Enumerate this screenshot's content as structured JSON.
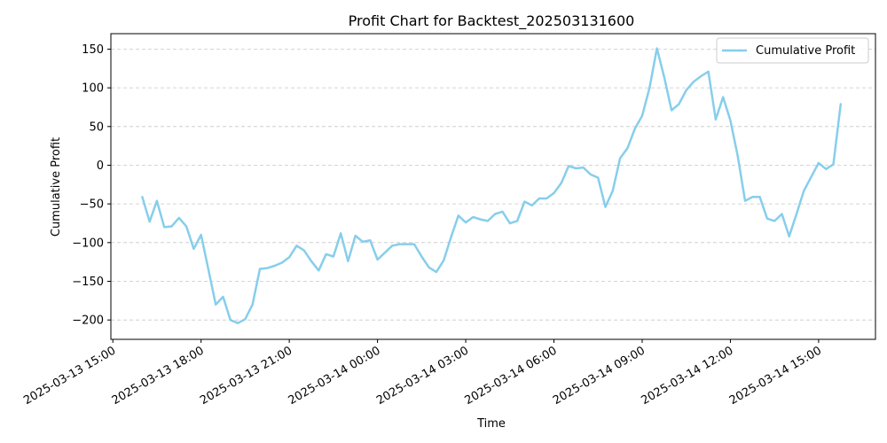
{
  "chart_data": {
    "type": "line",
    "title": "Profit Chart for Backtest_202503131600",
    "xlabel": "Time",
    "ylabel": "Cumulative Profit",
    "xlim": [
      "2025-03-13 14:56",
      "2025-03-14 16:56"
    ],
    "ylim": [
      -225,
      170
    ],
    "grid": "y-dashed",
    "legend_position": "top-right",
    "x_ticks": [
      "2025-03-13 15:00",
      "2025-03-13 18:00",
      "2025-03-13 21:00",
      "2025-03-14 00:00",
      "2025-03-14 03:00",
      "2025-03-14 06:00",
      "2025-03-14 09:00",
      "2025-03-14 12:00",
      "2025-03-14 15:00"
    ],
    "y_ticks": [
      150,
      100,
      50,
      0,
      -50,
      -100,
      -150,
      -200
    ],
    "y_tick_labels": [
      "150",
      "100",
      "50",
      "0",
      "−50",
      "−100",
      "−150",
      "−200"
    ],
    "colors": {
      "series": "#87ceeb"
    },
    "series": [
      {
        "name": "Cumulative Profit",
        "x": [
          "2025-03-13 16:00",
          "2025-03-13 16:15",
          "2025-03-13 16:30",
          "2025-03-13 16:45",
          "2025-03-13 17:00",
          "2025-03-13 17:15",
          "2025-03-13 17:30",
          "2025-03-13 17:45",
          "2025-03-13 18:00",
          "2025-03-13 18:15",
          "2025-03-13 18:30",
          "2025-03-13 18:45",
          "2025-03-13 19:00",
          "2025-03-13 19:15",
          "2025-03-13 19:30",
          "2025-03-13 19:45",
          "2025-03-13 20:00",
          "2025-03-13 20:15",
          "2025-03-13 20:30",
          "2025-03-13 20:45",
          "2025-03-13 21:00",
          "2025-03-13 21:15",
          "2025-03-13 21:30",
          "2025-03-13 21:45",
          "2025-03-13 22:00",
          "2025-03-13 22:15",
          "2025-03-13 22:30",
          "2025-03-13 22:45",
          "2025-03-13 23:00",
          "2025-03-13 23:15",
          "2025-03-13 23:30",
          "2025-03-13 23:45",
          "2025-03-14 00:00",
          "2025-03-14 00:15",
          "2025-03-14 00:30",
          "2025-03-14 00:45",
          "2025-03-14 01:00",
          "2025-03-14 01:15",
          "2025-03-14 01:30",
          "2025-03-14 01:45",
          "2025-03-14 02:00",
          "2025-03-14 02:15",
          "2025-03-14 02:30",
          "2025-03-14 02:45",
          "2025-03-14 03:00",
          "2025-03-14 03:15",
          "2025-03-14 03:30",
          "2025-03-14 03:45",
          "2025-03-14 04:00",
          "2025-03-14 04:15",
          "2025-03-14 04:30",
          "2025-03-14 04:45",
          "2025-03-14 05:00",
          "2025-03-14 05:15",
          "2025-03-14 05:30",
          "2025-03-14 05:45",
          "2025-03-14 06:00",
          "2025-03-14 06:15",
          "2025-03-14 06:30",
          "2025-03-14 06:45",
          "2025-03-14 07:00",
          "2025-03-14 07:15",
          "2025-03-14 07:30",
          "2025-03-14 07:45",
          "2025-03-14 08:00",
          "2025-03-14 08:15",
          "2025-03-14 08:30",
          "2025-03-14 08:45",
          "2025-03-14 09:00",
          "2025-03-14 09:15",
          "2025-03-14 09:30",
          "2025-03-14 09:45",
          "2025-03-14 10:00",
          "2025-03-14 10:15",
          "2025-03-14 10:30",
          "2025-03-14 10:45",
          "2025-03-14 11:00",
          "2025-03-14 11:15",
          "2025-03-14 11:30",
          "2025-03-14 11:45",
          "2025-03-14 12:00",
          "2025-03-14 12:15",
          "2025-03-14 12:30",
          "2025-03-14 12:45",
          "2025-03-14 13:00",
          "2025-03-14 13:15",
          "2025-03-14 13:30",
          "2025-03-14 13:45",
          "2025-03-14 14:00",
          "2025-03-14 14:15",
          "2025-03-14 14:30",
          "2025-03-14 14:45",
          "2025-03-14 15:00",
          "2025-03-14 15:15",
          "2025-03-14 15:30",
          "2025-03-14 15:45"
        ],
        "y": [
          -41,
          -73,
          -46,
          -80,
          -79,
          -68,
          -79,
          -108,
          -90,
          -135,
          -180,
          -170,
          -200,
          -204,
          -199,
          -180,
          -134,
          -133,
          -130,
          -126,
          -119,
          -104,
          -110,
          -124,
          -136,
          -115,
          -118,
          -88,
          -124,
          -91,
          -99,
          -97,
          -122,
          -113,
          -104,
          -102,
          -102,
          -102,
          -118,
          -132,
          -138,
          -123,
          -93,
          -65,
          -74,
          -67,
          -70,
          -72,
          -63,
          -60,
          -75,
          -72,
          -47,
          -52,
          -43,
          -43,
          -36,
          -23,
          -1,
          -4,
          -3,
          -12,
          -16,
          -54,
          -33,
          9,
          22,
          47,
          64,
          100,
          151,
          114,
          71,
          79,
          97,
          108,
          115,
          121,
          59,
          88,
          58,
          12,
          -46,
          -41,
          -41,
          -69,
          -72,
          -63,
          -92,
          -63,
          -33,
          -15,
          3,
          -5,
          1,
          79
        ]
      }
    ]
  }
}
